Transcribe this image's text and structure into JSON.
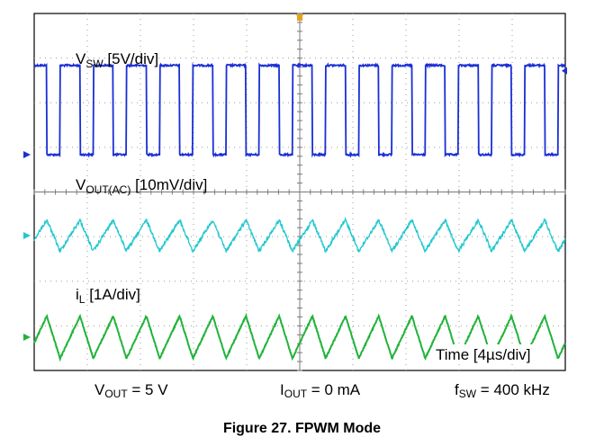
{
  "chart_data": {
    "type": "line",
    "title": "",
    "grid": true,
    "divisions": {
      "x": 10,
      "y": 8
    },
    "time_per_div_label": "Time [4µs/div]",
    "series": [
      {
        "name": "VSW",
        "label_main": "V",
        "label_sub": "SW",
        "label_suffix": " [5V/div]",
        "color": "#1a2fd6",
        "shape": "square",
        "period_us": 2.5,
        "high_div": 2.0,
        "low_div": 0.0,
        "duty": 0.6
      },
      {
        "name": "VOUT(AC)",
        "label_main": "V",
        "label_sub": "OUT(AC)",
        "label_suffix": " [10mV/div]",
        "color": "#22c7cf",
        "shape": "triangle",
        "period_us": 2.5,
        "peak_to_peak_div": 0.7
      },
      {
        "name": "iL",
        "label_main": "i",
        "label_sub": "L",
        "label_suffix": " [1A/div]",
        "color": "#22b33a",
        "shape": "triangle",
        "period_us": 2.5,
        "peak_to_peak_div": 0.95
      }
    ]
  },
  "bottom_labels": {
    "vout": {
      "main": "V",
      "sub": "OUT",
      "rest": " = 5 V"
    },
    "iout": {
      "main": "I",
      "sub": "OUT",
      "rest": " = 0 mA"
    },
    "fsw": {
      "main": "f",
      "sub": "SW",
      "rest": " = 400 kHz"
    }
  },
  "caption": "Figure 27. FPWM Mode"
}
